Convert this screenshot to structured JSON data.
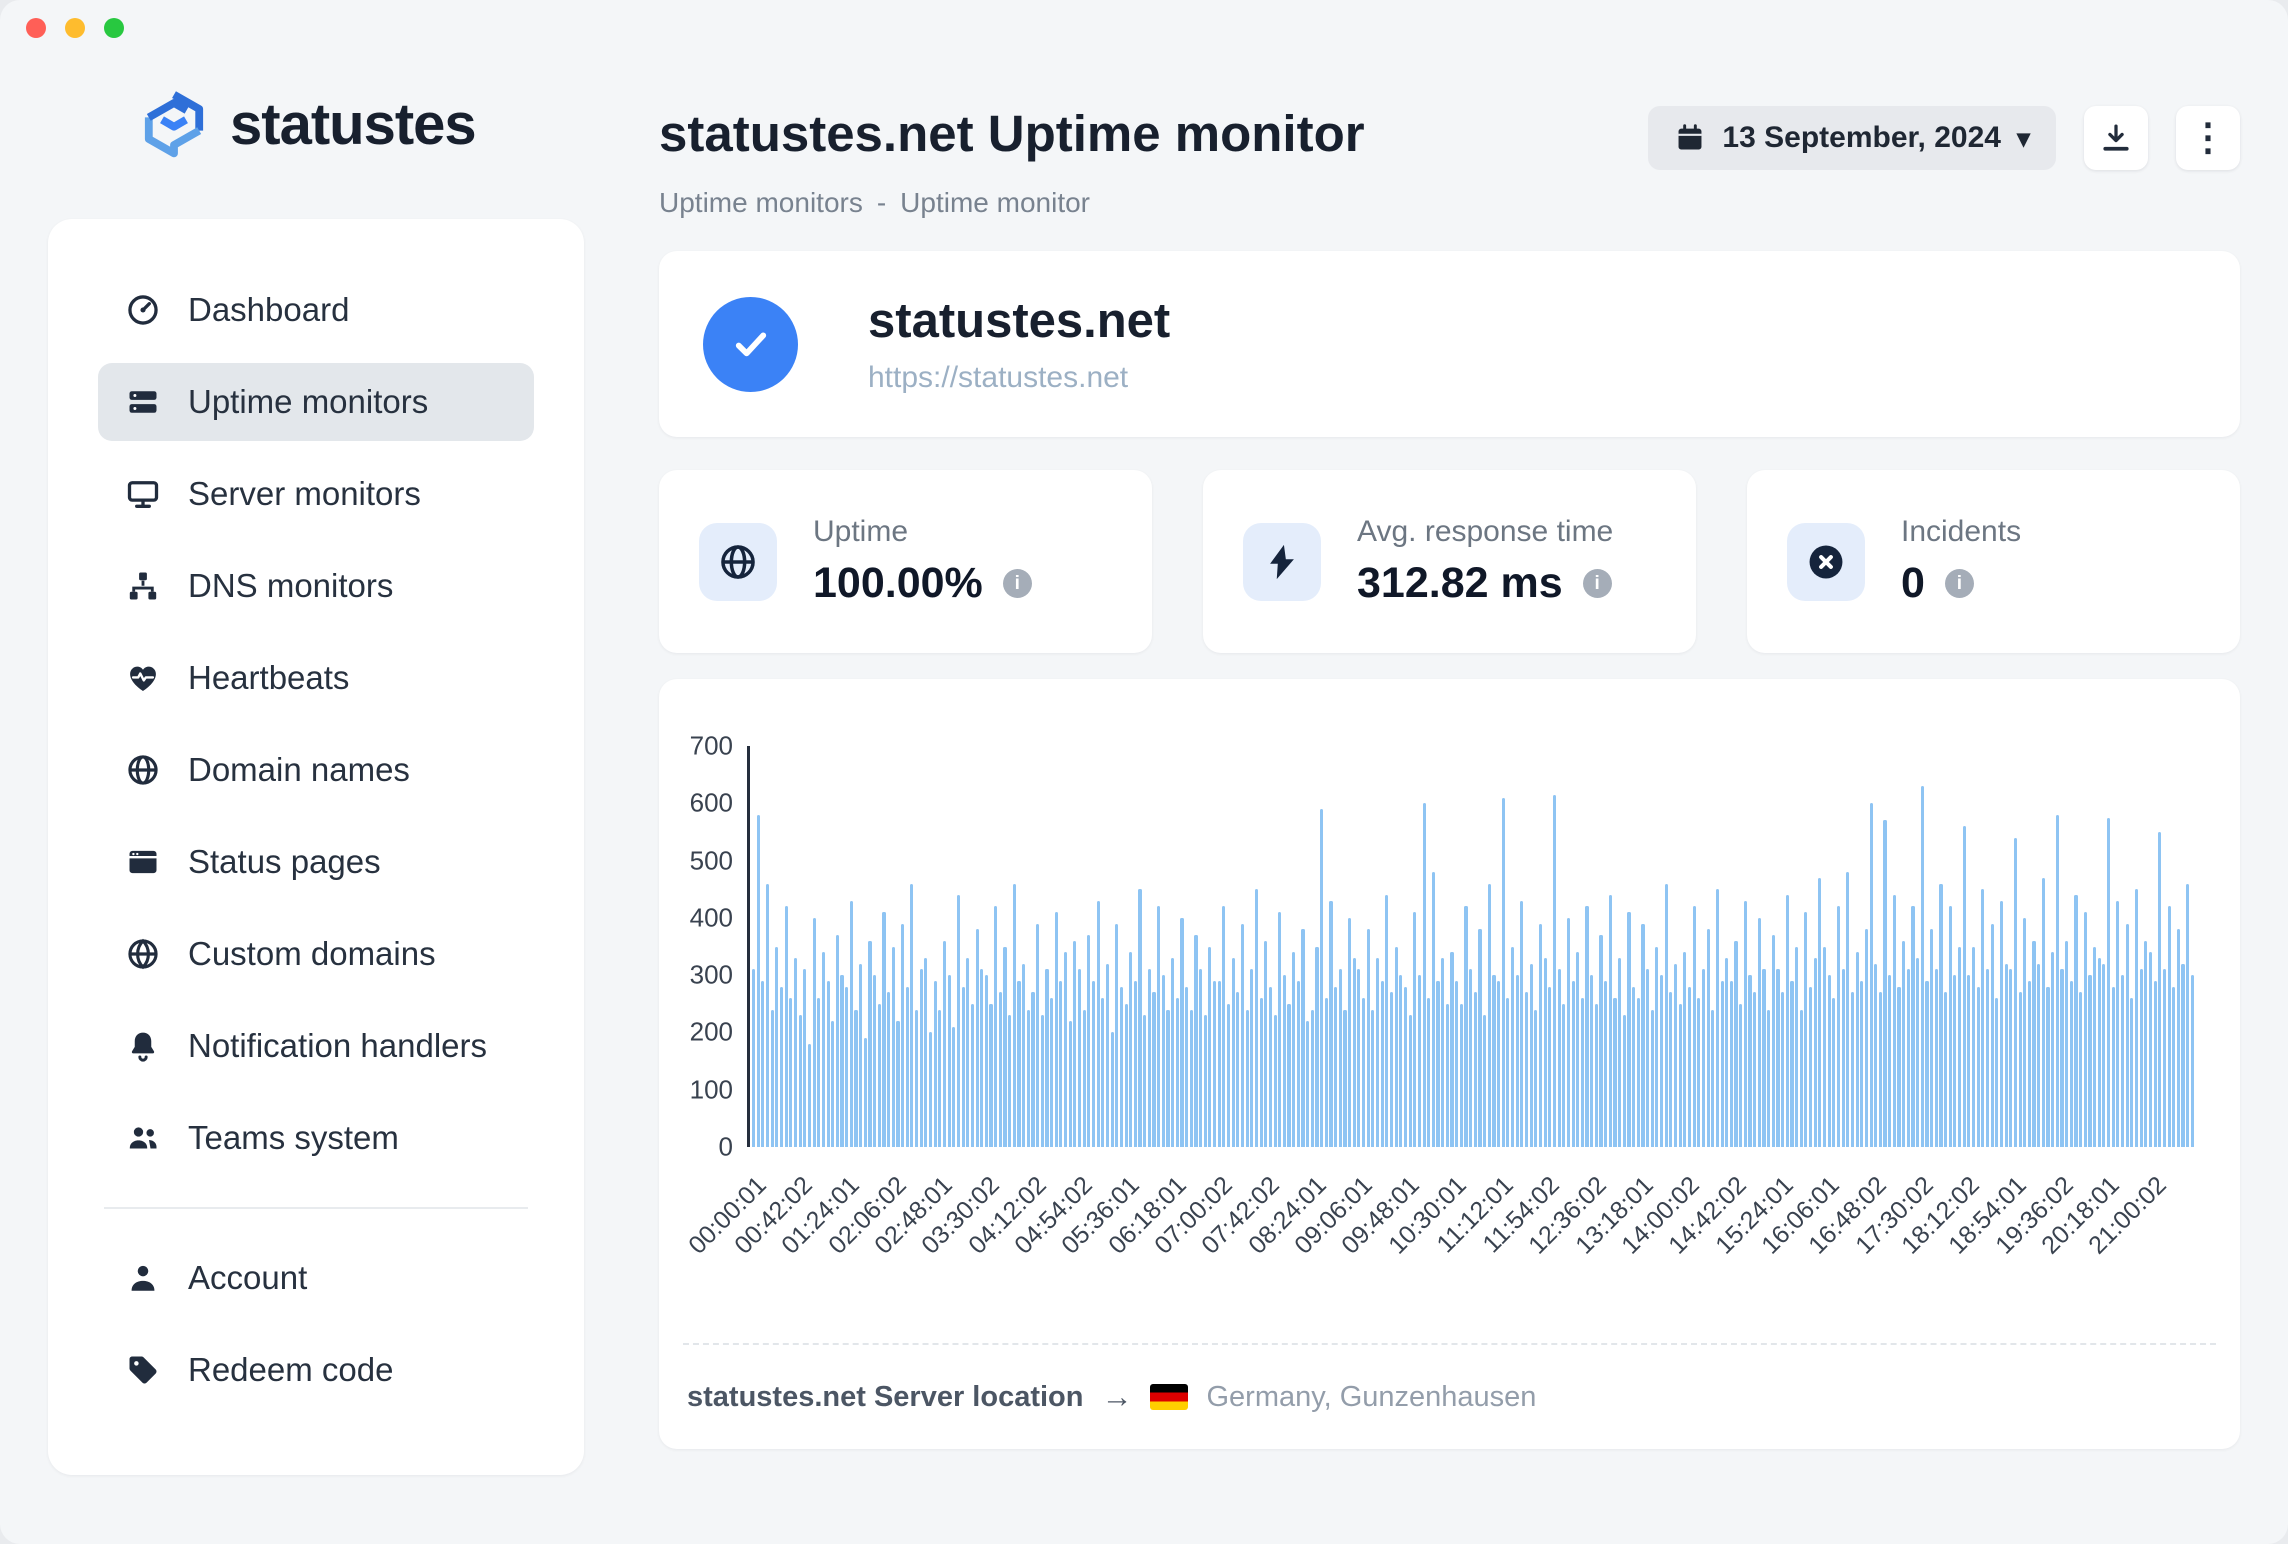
{
  "brand": {
    "name": "statustes"
  },
  "header": {
    "title": "statustes.net Uptime monitor",
    "breadcrumb": [
      "Uptime monitors",
      "Uptime monitor"
    ],
    "breadcrumb_separator": "-",
    "date_picker": "13 September, 2024"
  },
  "icons": {
    "chevron_down": "▾",
    "kebab": "⋮",
    "info": "i"
  },
  "sidebar": {
    "items": [
      {
        "label": "Dashboard",
        "icon": "dashboard-icon",
        "active": false
      },
      {
        "label": "Uptime monitors",
        "icon": "uptime-monitors-icon",
        "active": true
      },
      {
        "label": "Server monitors",
        "icon": "server-monitors-icon",
        "active": false
      },
      {
        "label": "DNS monitors",
        "icon": "dns-monitors-icon",
        "active": false
      },
      {
        "label": "Heartbeats",
        "icon": "heartbeat-icon",
        "active": false
      },
      {
        "label": "Domain names",
        "icon": "globe-icon",
        "active": false
      },
      {
        "label": "Status pages",
        "icon": "status-pages-icon",
        "active": false
      },
      {
        "label": "Custom domains",
        "icon": "custom-domains-icon",
        "active": false
      },
      {
        "label": "Notification handlers",
        "icon": "bell-icon",
        "active": false
      },
      {
        "label": "Teams system",
        "icon": "teams-icon",
        "active": false
      }
    ],
    "footer_items": [
      {
        "label": "Account",
        "icon": "person-icon"
      },
      {
        "label": "Redeem code",
        "icon": "tag-icon"
      }
    ]
  },
  "monitor": {
    "name": "statustes.net",
    "url": "https://statustes.net",
    "status_color": "#3b82f6"
  },
  "stats": [
    {
      "label": "Uptime",
      "value": "100.00%",
      "icon": "globe-icon"
    },
    {
      "label": "Avg. response time",
      "value": "312.82 ms",
      "icon": "bolt-icon"
    },
    {
      "label": "Incidents",
      "value": "0",
      "icon": "incident-icon"
    }
  ],
  "chart_data": {
    "type": "bar",
    "title": "",
    "xlabel": "",
    "ylabel": "",
    "ylim": [
      0,
      700
    ],
    "y_ticks": [
      0,
      100,
      200,
      300,
      400,
      500,
      600,
      700
    ],
    "grid": false,
    "legend": "none",
    "bar_color": "#8ec4f3",
    "x_labels": [
      "00:00:01",
      "00:42:02",
      "01:24:01",
      "02:06:02",
      "02:48:01",
      "03:30:02",
      "04:12:02",
      "04:54:02",
      "05:36:01",
      "06:18:01",
      "07:00:02",
      "07:42:02",
      "08:24:01",
      "09:06:01",
      "09:48:01",
      "10:30:01",
      "11:12:01",
      "11:54:02",
      "12:36:02",
      "13:18:01",
      "14:00:02",
      "14:42:02",
      "15:24:01",
      "16:06:01",
      "16:48:02",
      "17:30:02",
      "18:12:02",
      "18:54:01",
      "19:36:02",
      "20:18:01",
      "21:00:02"
    ],
    "values": [
      310,
      580,
      290,
      460,
      240,
      350,
      280,
      420,
      260,
      330,
      230,
      310,
      180,
      400,
      260,
      340,
      290,
      220,
      370,
      300,
      280,
      430,
      240,
      320,
      190,
      360,
      300,
      250,
      410,
      270,
      350,
      220,
      390,
      280,
      460,
      240,
      310,
      330,
      200,
      290,
      240,
      360,
      300,
      210,
      440,
      280,
      330,
      250,
      380,
      310,
      300,
      250,
      420,
      270,
      350,
      230,
      460,
      290,
      320,
      240,
      270,
      390,
      230,
      310,
      260,
      410,
      290,
      340,
      220,
      360,
      310,
      240,
      370,
      290,
      430,
      260,
      320,
      200,
      390,
      280,
      250,
      340,
      290,
      450,
      230,
      310,
      270,
      420,
      300,
      240,
      330,
      260,
      400,
      280,
      240,
      370,
      310,
      230,
      350,
      290,
      290,
      420,
      250,
      330,
      270,
      390,
      240,
      310,
      450,
      260,
      360,
      280,
      230,
      410,
      300,
      250,
      340,
      290,
      380,
      220,
      240,
      350,
      590,
      260,
      430,
      280,
      310,
      240,
      400,
      330,
      310,
      260,
      380,
      240,
      330,
      290,
      440,
      270,
      350,
      300,
      280,
      230,
      410,
      300,
      600,
      260,
      480,
      290,
      330,
      250,
      340,
      290,
      250,
      420,
      310,
      270,
      380,
      230,
      460,
      300,
      290,
      610,
      260,
      350,
      300,
      430,
      270,
      320,
      240,
      390,
      330,
      280,
      615,
      310,
      250,
      400,
      290,
      340,
      260,
      420,
      300,
      250,
      370,
      290,
      440,
      260,
      330,
      230,
      410,
      280,
      260,
      390,
      310,
      240,
      350,
      300,
      460,
      270,
      320,
      250,
      340,
      280,
      420,
      260,
      310,
      380,
      240,
      450,
      290,
      330,
      290,
      360,
      250,
      430,
      300,
      270,
      400,
      310,
      240,
      370,
      310,
      270,
      440,
      290,
      350,
      240,
      410,
      280,
      330,
      470,
      350,
      300,
      260,
      420,
      310,
      480,
      270,
      340,
      290,
      380,
      600,
      320,
      270,
      570,
      300,
      440,
      280,
      360,
      310,
      420,
      330,
      630,
      290,
      380,
      310,
      460,
      270,
      420,
      300,
      350,
      560,
      300,
      350,
      280,
      450,
      310,
      390,
      260,
      430,
      320,
      310,
      540,
      270,
      400,
      290,
      360,
      320,
      470,
      280,
      340,
      580,
      310,
      360,
      290,
      440,
      270,
      410,
      300,
      350,
      330,
      320,
      575,
      280,
      430,
      300,
      390,
      260,
      450,
      310,
      360,
      340,
      290,
      550,
      310,
      420,
      280,
      380,
      320,
      460,
      300
    ]
  },
  "footer": {
    "server_location_label": "statustes.net Server location",
    "arrow": "→",
    "location": "Germany, Gunzenhausen"
  },
  "colors": {
    "accent": "#3b82f6",
    "bar": "#8ec4f3",
    "background": "#f4f6f8"
  }
}
